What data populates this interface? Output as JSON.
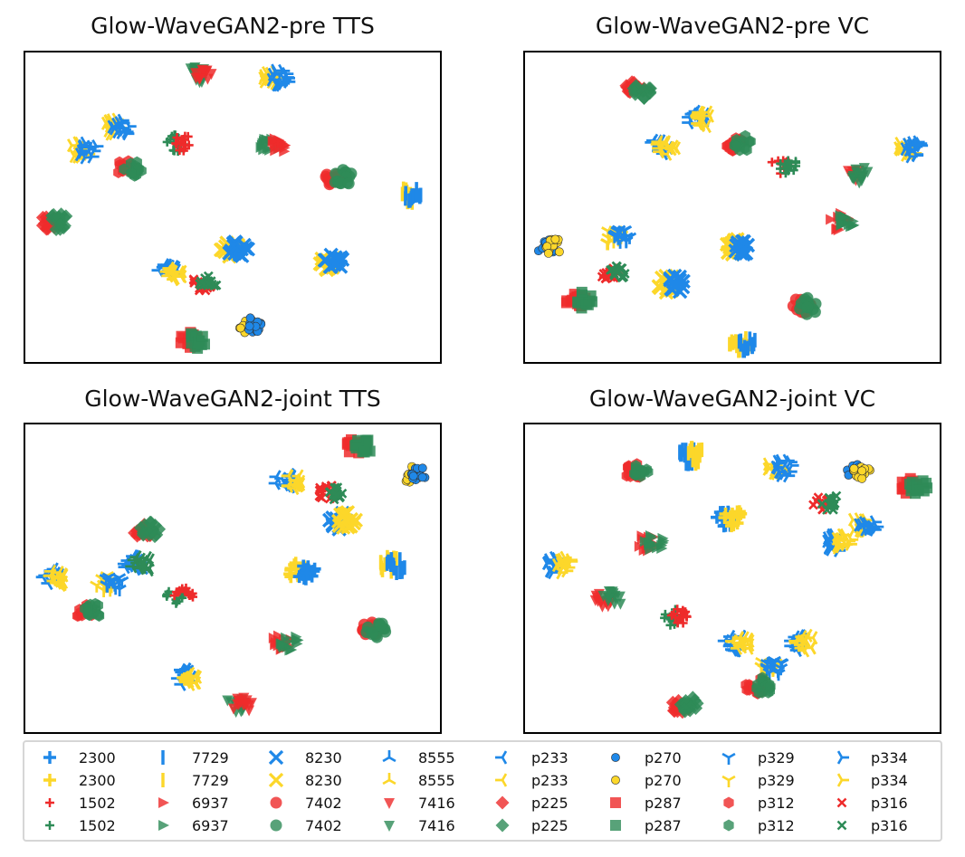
{
  "colors": {
    "blue": "#1f88e8",
    "yellow": "#fcd72a",
    "red": "#ee2b2b",
    "green": "#2e8b57"
  },
  "legend": {
    "columns": [
      [
        [
          "2300",
          "plus-thick",
          "blue"
        ],
        [
          "2300",
          "plus-thick",
          "yellow"
        ],
        [
          "1502",
          "plus-small",
          "red"
        ],
        [
          "1502",
          "plus-small",
          "green"
        ]
      ],
      [
        [
          "7729",
          "vline",
          "blue"
        ],
        [
          "7729",
          "vline",
          "yellow"
        ],
        [
          "6937",
          "triangle-right",
          "red"
        ],
        [
          "6937",
          "triangle-right",
          "green"
        ]
      ],
      [
        [
          "8230",
          "x-thick",
          "blue"
        ],
        [
          "8230",
          "x-thick",
          "yellow"
        ],
        [
          "7402",
          "circle",
          "red"
        ],
        [
          "7402",
          "circle",
          "green"
        ]
      ],
      [
        [
          "8555",
          "tri-down",
          "blue"
        ],
        [
          "8555",
          "tri-down",
          "yellow"
        ],
        [
          "7416",
          "triangle-down",
          "red"
        ],
        [
          "7416",
          "triangle-down",
          "green"
        ]
      ],
      [
        [
          "p233",
          "tri-left",
          "blue"
        ],
        [
          "p233",
          "tri-left",
          "yellow"
        ],
        [
          "p225",
          "diamond",
          "red"
        ],
        [
          "p225",
          "diamond",
          "green"
        ]
      ],
      [
        [
          "p270",
          "dot",
          "blue"
        ],
        [
          "p270",
          "dot",
          "yellow"
        ],
        [
          "p287",
          "square",
          "red"
        ],
        [
          "p287",
          "square",
          "green"
        ]
      ],
      [
        [
          "p329",
          "tri-up",
          "blue"
        ],
        [
          "p329",
          "tri-up",
          "yellow"
        ],
        [
          "p312",
          "hexagon",
          "red"
        ],
        [
          "p312",
          "hexagon",
          "green"
        ]
      ],
      [
        [
          "p334",
          "tri-right",
          "blue"
        ],
        [
          "p334",
          "tri-right",
          "yellow"
        ],
        [
          "p316",
          "x-small",
          "red"
        ],
        [
          "p316",
          "x-small",
          "green"
        ]
      ]
    ]
  },
  "chart_data": [
    {
      "type": "scatter",
      "title": "Glow-WaveGAN2-pre TTS",
      "xlim": [
        0,
        100
      ],
      "ylim": [
        0,
        100
      ],
      "grid": false,
      "clusters": [
        {
          "x": 42,
          "y": 93,
          "marker": "triangle-down",
          "colors": [
            "green",
            "red"
          ]
        },
        {
          "x": 60,
          "y": 92,
          "marker": "tri-right",
          "colors": [
            "yellow",
            "blue"
          ]
        },
        {
          "x": 22,
          "y": 76,
          "marker": "tri-right",
          "colors": [
            "yellow",
            "blue"
          ]
        },
        {
          "x": 14,
          "y": 69,
          "marker": "tri-right",
          "colors": [
            "yellow",
            "blue"
          ]
        },
        {
          "x": 37,
          "y": 71,
          "marker": "plus-small",
          "colors": [
            "green",
            "red"
          ]
        },
        {
          "x": 59,
          "y": 70,
          "marker": "triangle-right",
          "colors": [
            "green",
            "red"
          ]
        },
        {
          "x": 25,
          "y": 63,
          "marker": "hexagon",
          "colors": [
            "red",
            "green"
          ]
        },
        {
          "x": 75,
          "y": 60,
          "marker": "circle",
          "colors": [
            "red",
            "green"
          ]
        },
        {
          "x": 92,
          "y": 54,
          "marker": "vline",
          "colors": [
            "yellow",
            "blue"
          ]
        },
        {
          "x": 7,
          "y": 46,
          "marker": "diamond",
          "colors": [
            "red",
            "green"
          ]
        },
        {
          "x": 50,
          "y": 37,
          "marker": "x-thick",
          "colors": [
            "yellow",
            "blue"
          ]
        },
        {
          "x": 73,
          "y": 33,
          "marker": "x-thick",
          "colors": [
            "yellow",
            "blue"
          ]
        },
        {
          "x": 35,
          "y": 30,
          "marker": "tri-left",
          "colors": [
            "blue",
            "yellow"
          ]
        },
        {
          "x": 43,
          "y": 26,
          "marker": "x-small",
          "colors": [
            "red",
            "green"
          ]
        },
        {
          "x": 54,
          "y": 13,
          "marker": "dot",
          "colors": [
            "yellow",
            "blue"
          ]
        },
        {
          "x": 40,
          "y": 8,
          "marker": "square",
          "colors": [
            "red",
            "green"
          ]
        }
      ]
    },
    {
      "type": "scatter",
      "title": "Glow-WaveGAN2-pre VC",
      "xlim": [
        0,
        100
      ],
      "ylim": [
        0,
        100
      ],
      "grid": false,
      "clusters": [
        {
          "x": 27,
          "y": 88,
          "marker": "diamond",
          "colors": [
            "red",
            "green"
          ]
        },
        {
          "x": 42,
          "y": 79,
          "marker": "tri-left",
          "colors": [
            "blue",
            "yellow"
          ]
        },
        {
          "x": 33,
          "y": 70,
          "marker": "tri-left",
          "colors": [
            "blue",
            "yellow"
          ]
        },
        {
          "x": 51,
          "y": 71,
          "marker": "hexagon",
          "colors": [
            "red",
            "green"
          ]
        },
        {
          "x": 62,
          "y": 64,
          "marker": "plus-small",
          "colors": [
            "red",
            "green"
          ]
        },
        {
          "x": 92,
          "y": 69,
          "marker": "tri-right",
          "colors": [
            "yellow",
            "blue"
          ]
        },
        {
          "x": 79,
          "y": 61,
          "marker": "triangle-down",
          "colors": [
            "red",
            "green"
          ]
        },
        {
          "x": 76,
          "y": 46,
          "marker": "triangle-right",
          "colors": [
            "red",
            "green"
          ]
        },
        {
          "x": 6,
          "y": 38,
          "marker": "dot",
          "colors": [
            "blue",
            "yellow"
          ]
        },
        {
          "x": 22,
          "y": 41,
          "marker": "tri-up",
          "colors": [
            "yellow",
            "blue"
          ]
        },
        {
          "x": 51,
          "y": 38,
          "marker": "x-thick",
          "colors": [
            "yellow",
            "blue"
          ]
        },
        {
          "x": 21,
          "y": 30,
          "marker": "x-small",
          "colors": [
            "red",
            "green"
          ]
        },
        {
          "x": 35,
          "y": 26,
          "marker": "x-thick",
          "colors": [
            "yellow",
            "blue"
          ]
        },
        {
          "x": 13,
          "y": 21,
          "marker": "square",
          "colors": [
            "red",
            "green"
          ]
        },
        {
          "x": 67,
          "y": 19,
          "marker": "circle",
          "colors": [
            "red",
            "green"
          ]
        },
        {
          "x": 52,
          "y": 7,
          "marker": "vline",
          "colors": [
            "yellow",
            "blue"
          ]
        }
      ]
    },
    {
      "type": "scatter",
      "title": "Glow-WaveGAN2-joint TTS",
      "xlim": [
        0,
        100
      ],
      "ylim": [
        0,
        100
      ],
      "grid": false,
      "clusters": [
        {
          "x": 80,
          "y": 93,
          "marker": "square",
          "colors": [
            "red",
            "green"
          ]
        },
        {
          "x": 93,
          "y": 84,
          "marker": "dot",
          "colors": [
            "yellow",
            "blue"
          ]
        },
        {
          "x": 63,
          "y": 82,
          "marker": "tri-left",
          "colors": [
            "blue",
            "yellow"
          ]
        },
        {
          "x": 73,
          "y": 78,
          "marker": "x-small",
          "colors": [
            "red",
            "green"
          ]
        },
        {
          "x": 29,
          "y": 66,
          "marker": "diamond",
          "colors": [
            "red",
            "green"
          ]
        },
        {
          "x": 76,
          "y": 69,
          "marker": "x-thick",
          "colors": [
            "blue",
            "yellow"
          ]
        },
        {
          "x": 27,
          "y": 55,
          "marker": "tri-left",
          "colors": [
            "blue",
            "green"
          ]
        },
        {
          "x": 7,
          "y": 51,
          "marker": "tri-left",
          "colors": [
            "blue",
            "yellow"
          ]
        },
        {
          "x": 20,
          "y": 49,
          "marker": "tri-up",
          "colors": [
            "yellow",
            "blue"
          ]
        },
        {
          "x": 66,
          "y": 53,
          "marker": "plus-thick",
          "colors": [
            "yellow",
            "blue"
          ]
        },
        {
          "x": 88,
          "y": 55,
          "marker": "vline",
          "colors": [
            "yellow",
            "blue"
          ]
        },
        {
          "x": 37,
          "y": 45,
          "marker": "plus-small",
          "colors": [
            "green",
            "red"
          ]
        },
        {
          "x": 15,
          "y": 40,
          "marker": "hexagon",
          "colors": [
            "red",
            "green"
          ]
        },
        {
          "x": 83,
          "y": 34,
          "marker": "circle",
          "colors": [
            "red",
            "green"
          ]
        },
        {
          "x": 62,
          "y": 30,
          "marker": "triangle-right",
          "colors": [
            "red",
            "green"
          ]
        },
        {
          "x": 39,
          "y": 19,
          "marker": "tri-left",
          "colors": [
            "blue",
            "yellow"
          ]
        },
        {
          "x": 51,
          "y": 10,
          "marker": "triangle-down",
          "colors": [
            "green",
            "red"
          ]
        }
      ]
    },
    {
      "type": "scatter",
      "title": "Glow-WaveGAN2-joint VC",
      "xlim": [
        0,
        100
      ],
      "ylim": [
        0,
        100
      ],
      "grid": false,
      "clusters": [
        {
          "x": 40,
          "y": 90,
          "marker": "vline",
          "colors": [
            "blue",
            "yellow"
          ]
        },
        {
          "x": 27,
          "y": 85,
          "marker": "hexagon",
          "colors": [
            "red",
            "green"
          ]
        },
        {
          "x": 61,
          "y": 86,
          "marker": "tri-right",
          "colors": [
            "yellow",
            "blue"
          ]
        },
        {
          "x": 80,
          "y": 85,
          "marker": "dot",
          "colors": [
            "blue",
            "yellow"
          ]
        },
        {
          "x": 93,
          "y": 80,
          "marker": "square",
          "colors": [
            "red",
            "green"
          ]
        },
        {
          "x": 72,
          "y": 75,
          "marker": "x-small",
          "colors": [
            "red",
            "green"
          ]
        },
        {
          "x": 49,
          "y": 70,
          "marker": "plus-thick",
          "colors": [
            "blue",
            "yellow"
          ]
        },
        {
          "x": 81,
          "y": 68,
          "marker": "tri-right",
          "colors": [
            "yellow",
            "blue"
          ]
        },
        {
          "x": 75,
          "y": 62,
          "marker": "tri-right",
          "colors": [
            "blue",
            "yellow"
          ]
        },
        {
          "x": 30,
          "y": 62,
          "marker": "triangle-right",
          "colors": [
            "red",
            "green"
          ]
        },
        {
          "x": 8,
          "y": 55,
          "marker": "tri-right",
          "colors": [
            "blue",
            "yellow"
          ]
        },
        {
          "x": 20,
          "y": 44,
          "marker": "triangle-down",
          "colors": [
            "red",
            "green"
          ]
        },
        {
          "x": 36,
          "y": 38,
          "marker": "plus-small",
          "colors": [
            "green",
            "red"
          ]
        },
        {
          "x": 51,
          "y": 30,
          "marker": "tri-left",
          "colors": [
            "blue",
            "yellow"
          ]
        },
        {
          "x": 66,
          "y": 30,
          "marker": "tri-left",
          "colors": [
            "blue",
            "yellow"
          ]
        },
        {
          "x": 59,
          "y": 22,
          "marker": "tri-up",
          "colors": [
            "yellow",
            "blue"
          ]
        },
        {
          "x": 56,
          "y": 16,
          "marker": "hexagon",
          "colors": [
            "red",
            "green"
          ]
        },
        {
          "x": 38,
          "y": 10,
          "marker": "diamond",
          "colors": [
            "red",
            "green"
          ]
        }
      ]
    }
  ]
}
